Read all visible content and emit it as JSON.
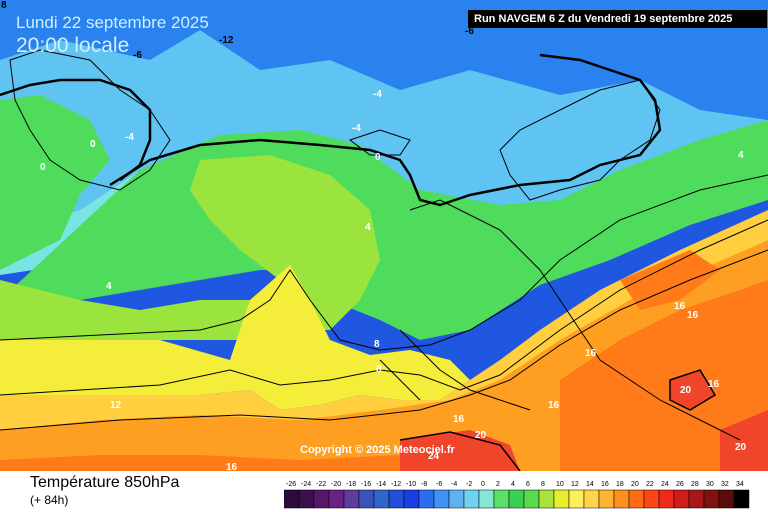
{
  "map": {
    "date": "Lundi 22 septembre 2025",
    "local_time": "20:00 locale",
    "run_info": "Run NAVGEM 6 Z du Vendredi 19 septembre 2025",
    "copyright": "Copyright © 2025 Meteociel.fr",
    "corner_value": "8",
    "product_title": "Température 850hPa",
    "forecast_offset": "(+ 84h)",
    "isotherm_labels": [
      {
        "text": "-12",
        "color": "#000000"
      },
      {
        "text": "-6",
        "color": "#000000"
      },
      {
        "text": "-6",
        "color": "#000000"
      },
      {
        "text": "-4",
        "color": "#ffffff"
      },
      {
        "text": "-4",
        "color": "#ffffff"
      },
      {
        "text": "-4",
        "color": "#ffffff"
      },
      {
        "text": "0",
        "color": "#ffffff"
      },
      {
        "text": "0",
        "color": "#ffffff"
      },
      {
        "text": "0",
        "color": "#ffffff"
      },
      {
        "text": "4",
        "color": "#ffffff"
      },
      {
        "text": "4",
        "color": "#ffffff"
      },
      {
        "text": "4",
        "color": "#ffffff"
      },
      {
        "text": "8",
        "color": "#ffffff"
      },
      {
        "text": "8",
        "color": "#ffffff"
      },
      {
        "text": "12",
        "color": "#ffffff"
      },
      {
        "text": "16",
        "color": "#ffffff"
      },
      {
        "text": "16",
        "color": "#ffffff"
      },
      {
        "text": "16",
        "color": "#ffffff"
      },
      {
        "text": "16",
        "color": "#ffffff"
      },
      {
        "text": "16",
        "color": "#ffffff"
      },
      {
        "text": "16",
        "color": "#ffffff"
      },
      {
        "text": "16",
        "color": "#ffffff"
      },
      {
        "text": "20",
        "color": "#ffffff"
      },
      {
        "text": "20",
        "color": "#ffffff"
      },
      {
        "text": "20",
        "color": "#ffffff"
      },
      {
        "text": "24",
        "color": "#ffffff"
      }
    ],
    "legend_values": [
      "-26",
      "-24",
      "-22",
      "-20",
      "-18",
      "-16",
      "-14",
      "-12",
      "-10",
      "-8",
      "-6",
      "-4",
      "-2",
      "0",
      "2",
      "4",
      "6",
      "8",
      "10",
      "12",
      "14",
      "16",
      "18",
      "20",
      "22",
      "24",
      "26",
      "28",
      "30",
      "32",
      "34"
    ],
    "legend_colors": [
      "#2a0d3a",
      "#3c1050",
      "#56176a",
      "#6a2183",
      "#5b3ea0",
      "#3d52b8",
      "#2f66cc",
      "#2150d6",
      "#1b3ee2",
      "#2a6df2",
      "#4091f5",
      "#5db3f2",
      "#6fd3f0",
      "#85e6d6",
      "#5be067",
      "#3ccf56",
      "#5ada4d",
      "#a8e23a",
      "#e7ee2d",
      "#ffee5a",
      "#ffd34a",
      "#ffb32e",
      "#ff8f1e",
      "#ff6a16",
      "#ff4518",
      "#ee2b1b",
      "#cf1c1c",
      "#a81717",
      "#801111",
      "#590c0c",
      "#000000"
    ]
  }
}
